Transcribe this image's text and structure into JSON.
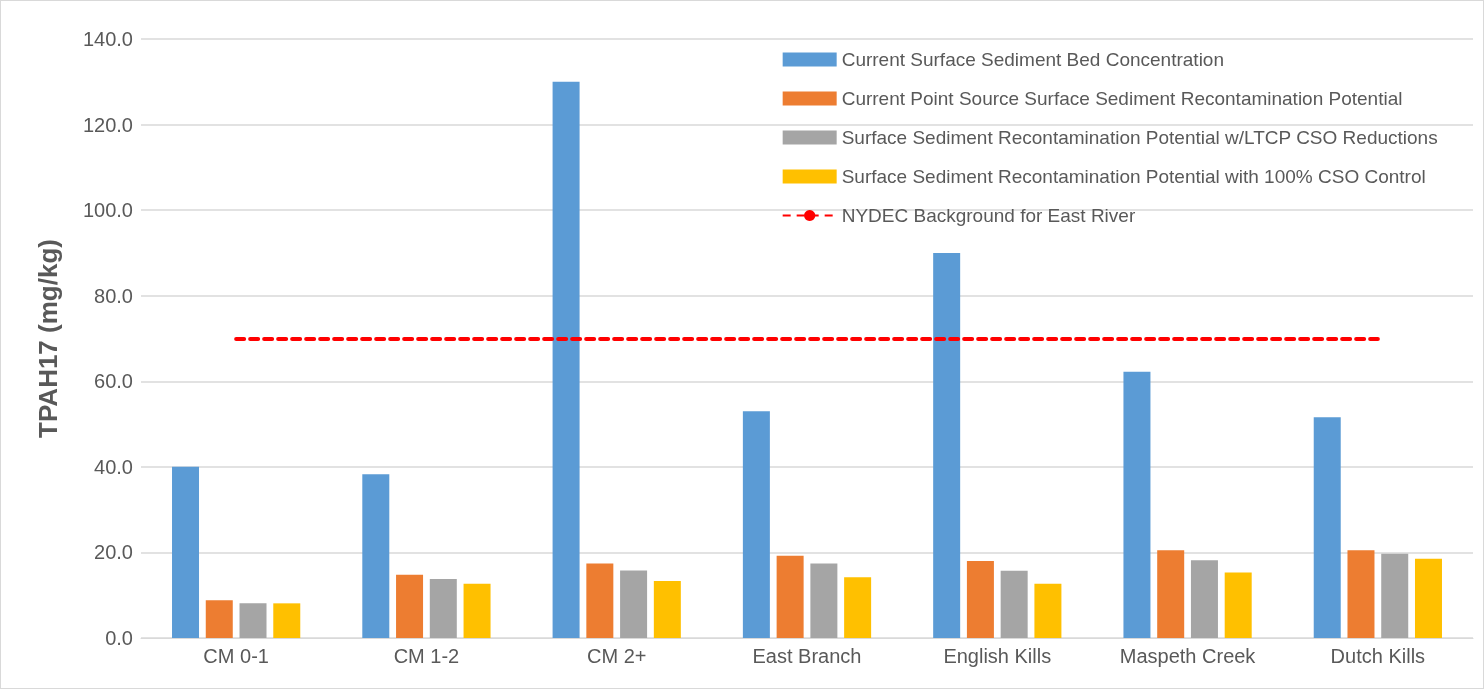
{
  "chart_data": {
    "type": "bar",
    "ylabel": "TPAH17 (mg/kg)",
    "categories": [
      "CM 0-1",
      "CM 1-2",
      "CM 2+",
      "East Branch",
      "English Kills",
      "Maspeth Creek",
      "Dutch Kills"
    ],
    "series": [
      {
        "name": "Current Surface Sediment Bed Concentration",
        "color": "#5b9bd5",
        "values": [
          40,
          38.3,
          130,
          53,
          90,
          62.2,
          51.6
        ]
      },
      {
        "name": "Current Point Source Surface Sediment Recontamination Potential",
        "color": "#ed7d31",
        "values": [
          8.8,
          14.8,
          17.4,
          19.2,
          18,
          20.5,
          20.5
        ]
      },
      {
        "name": "Surface Sediment Recontamination Potential w/LTCP CSO Reductions",
        "color": "#a5a5a5",
        "values": [
          8.1,
          13.8,
          15.8,
          17.4,
          15.7,
          18.2,
          19.7
        ]
      },
      {
        "name": "Surface Sediment Recontamination Potential with 100% CSO Control",
        "color": "#ffc000",
        "values": [
          8.1,
          12.7,
          13.3,
          14.2,
          12.7,
          15.3,
          18.5
        ]
      }
    ],
    "ylim": [
      0,
      140
    ],
    "yticks": [
      {
        "value": 0,
        "label": "0.0"
      },
      {
        "value": 20,
        "label": "20.0"
      },
      {
        "value": 40,
        "label": "40.0"
      },
      {
        "value": 60,
        "label": "60.0"
      },
      {
        "value": 80,
        "label": "80.0"
      },
      {
        "value": 100,
        "label": "100.0"
      },
      {
        "value": 120,
        "label": "120.0"
      },
      {
        "value": 140,
        "label": "140.0"
      }
    ],
    "ref_lines": [
      {
        "axis": "y",
        "value": 70,
        "label": "NYDEC Background for East River",
        "color": "#ff0000",
        "line_style": "dashed"
      }
    ],
    "grid": "y",
    "legend": "top right"
  }
}
